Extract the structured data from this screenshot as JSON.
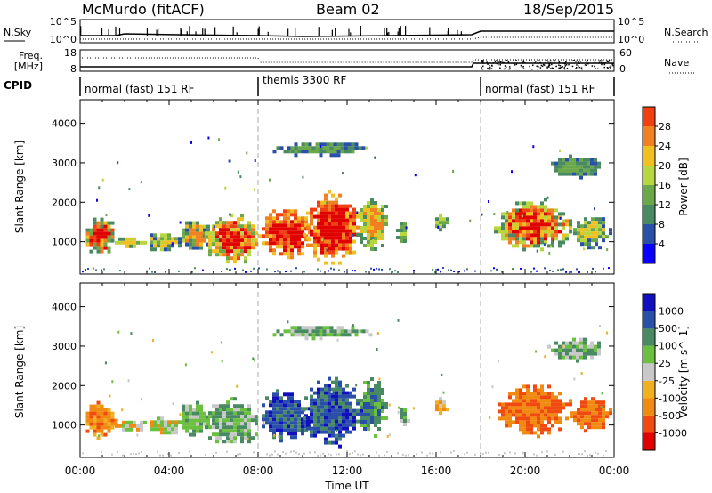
{
  "header": {
    "title": "McMurdo (fitACF)",
    "beam": "Beam 02",
    "date": "18/Sep/2015"
  },
  "status_panel": {
    "nsky_label": "N.Sky",
    "nsearch_label": "N.Search",
    "noise_ticks": [
      "10^5",
      "10^0"
    ],
    "freq_label": "Freq.",
    "freq_unit": "[MHz]",
    "freq_ticks": [
      "18",
      "8"
    ],
    "nave_label": "Nave",
    "nave_ticks": [
      "60",
      "0"
    ],
    "cpid_label": "CPID",
    "cpid_segments": [
      {
        "label": "normal (fast) 151 RF",
        "start_hour": 0,
        "end_hour": 8
      },
      {
        "label": "themis 3300 RF",
        "start_hour": 8,
        "end_hour": 18
      },
      {
        "label": "normal (fast) 151 RF",
        "start_hour": 18,
        "end_hour": 24
      }
    ]
  },
  "colors": {
    "power": [
      "#0a00ff",
      "#2a4fa8",
      "#4a8a62",
      "#6aa84a",
      "#b8d640",
      "#f0c020",
      "#f08020",
      "#f04010",
      "#e00000"
    ],
    "velocity": [
      "#e00000",
      "#f04a10",
      "#f08a10",
      "#f0b020",
      "#c8c8c8",
      "#6cc040",
      "#4a8a62",
      "#2a4fa8",
      "#1010c0"
    ]
  },
  "chart_data": [
    {
      "type": "heatmap",
      "name": "power-panel",
      "ylabel": "Slant Range [km]",
      "xlabel": "",
      "x_range_hours": [
        0,
        24
      ],
      "ylim": [
        180,
        4600
      ],
      "y_ticks": [
        "1000",
        "2000",
        "3000",
        "4000"
      ],
      "colorbar_label": "Power [dB]",
      "colorbar_ticks": [
        "4",
        "8",
        "12",
        "16",
        "20",
        "24",
        "28"
      ]
    },
    {
      "type": "heatmap",
      "name": "velocity-panel",
      "ylabel": "Slant Range [km]",
      "xlabel": "Time UT",
      "x_range_hours": [
        0,
        24
      ],
      "x_ticks": [
        "00:00",
        "04:00",
        "08:00",
        "12:00",
        "16:00",
        "20:00",
        "00:00"
      ],
      "ylim": [
        180,
        4600
      ],
      "y_ticks": [
        "1000",
        "2000",
        "3000",
        "4000"
      ],
      "colorbar_label": "Velocity [m s^-1]",
      "colorbar_ticks": [
        "-1000",
        "-500",
        "-100",
        "-25",
        "25",
        "100",
        "500",
        "1000"
      ]
    }
  ]
}
